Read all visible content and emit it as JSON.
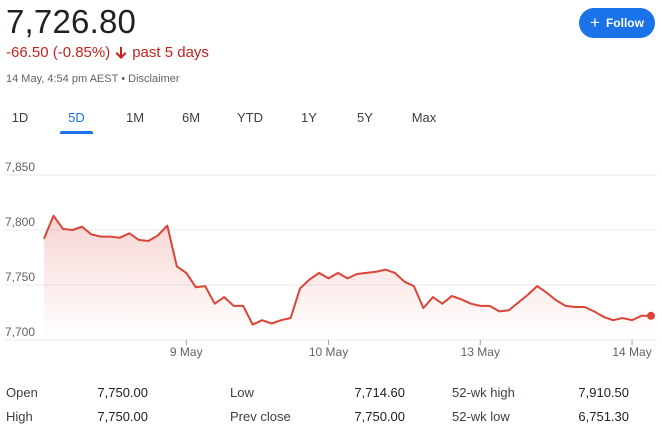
{
  "quote": {
    "price": "7,726.80",
    "change": "-66.50 (-0.85%)",
    "period": "past 5 days",
    "timestamp": "14 May, 4:54 pm AEST",
    "separator": "•",
    "disclaimer": "Disclaimer",
    "down_color": "#c5221f"
  },
  "follow": {
    "label": "Follow",
    "icon": "plus-icon"
  },
  "tabs": [
    {
      "label": "1D",
      "active": false
    },
    {
      "label": "5D",
      "active": true
    },
    {
      "label": "1M",
      "active": false
    },
    {
      "label": "6M",
      "active": false
    },
    {
      "label": "YTD",
      "active": false
    },
    {
      "label": "1Y",
      "active": false
    },
    {
      "label": "5Y",
      "active": false
    },
    {
      "label": "Max",
      "active": false
    }
  ],
  "chart_data": {
    "type": "area",
    "line_color": "#db4437",
    "grid": true,
    "ylim": [
      7700,
      7850
    ],
    "y_ticks": [
      "7,850",
      "7,800",
      "7,750",
      "7,700"
    ],
    "y_tick_values": [
      7850,
      7800,
      7750,
      7700
    ],
    "x_tick_labels": [
      "9 May",
      "10 May",
      "13 May",
      "14 May"
    ],
    "x_tick_index": [
      15,
      30,
      46,
      62
    ],
    "series": [
      {
        "values": [
          7792,
          7813,
          7801,
          7800,
          7803,
          7796,
          7794,
          7794,
          7793,
          7797,
          7791,
          7790,
          7795,
          7804,
          7767,
          7761,
          7748,
          7749,
          7733,
          7739,
          7731,
          7731,
          7714,
          7718,
          7715,
          7718,
          7720,
          7747,
          7755,
          7761,
          7756,
          7761,
          7756,
          7760,
          7761,
          7762,
          7764,
          7761,
          7753,
          7749,
          7729,
          7739,
          7733,
          7740,
          7737,
          7733,
          7731,
          7731,
          7726,
          7727,
          7734,
          7741,
          7749,
          7743,
          7736,
          7731,
          7730,
          7730,
          7726,
          7721,
          7718,
          7720,
          7718,
          7722,
          7722
        ]
      }
    ]
  },
  "stats": {
    "open": {
      "label": "Open",
      "value": "7,750.00"
    },
    "high": {
      "label": "High",
      "value": "7,750.00"
    },
    "low": {
      "label": "Low",
      "value": "7,714.60"
    },
    "prev": {
      "label": "Prev close",
      "value": "7,750.00"
    },
    "wkhigh": {
      "label": "52-wk high",
      "value": "7,910.50"
    },
    "wklow": {
      "label": "52-wk low",
      "value": "6,751.30"
    }
  }
}
